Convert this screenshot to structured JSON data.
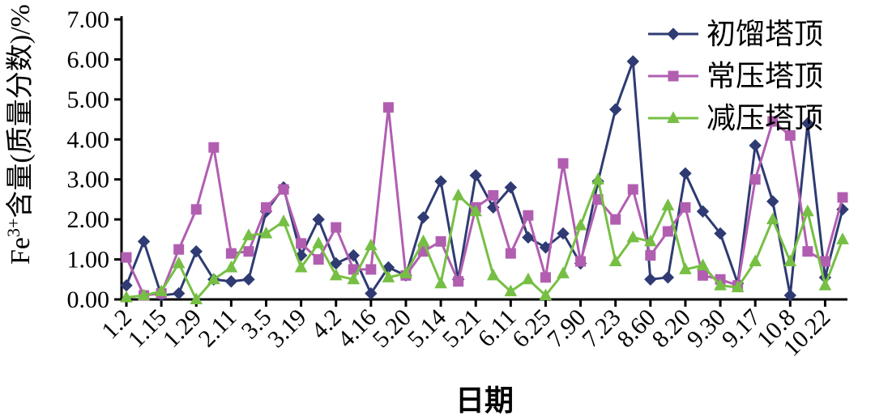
{
  "page": {
    "background": "#ffffff"
  },
  "chart_data": {
    "type": "line",
    "title": "",
    "xlabel": "日期",
    "ylabel": {
      "prefix": "Fe",
      "superscript": "3+",
      "suffix": "含量(质量分数)/%"
    },
    "ylim": [
      0,
      7
    ],
    "ytick_labels": [
      "0.00",
      "1.00",
      "2.00",
      "3.00",
      "4.00",
      "5.00",
      "6.00",
      "7.00"
    ],
    "x_tick_labels": [
      "1.2",
      "1.15",
      "1.29",
      "2.11",
      "3.5",
      "3.19",
      "4.2",
      "4.16",
      "5.20",
      "5.14",
      "5.21",
      "6.11",
      "6.25",
      "7.90",
      "7.23",
      "8.60",
      "8.20",
      "9.30",
      "9.17",
      "10.8",
      "10.22"
    ],
    "x_points_per_label": 2,
    "grid": false,
    "legend_position": "top-right",
    "axis_color": "#000000",
    "series": [
      {
        "name": "初馏塔顶",
        "marker": "diamond",
        "color": "#2F3B72",
        "values": [
          0.35,
          1.45,
          0.1,
          0.15,
          1.2,
          0.5,
          0.45,
          0.5,
          2.2,
          2.8,
          1.1,
          2.0,
          0.9,
          1.1,
          0.15,
          0.8,
          0.6,
          2.05,
          2.95,
          0.5,
          3.1,
          2.3,
          2.8,
          1.55,
          1.3,
          1.65,
          0.9,
          2.95,
          4.75,
          5.95,
          0.5,
          0.55,
          3.15,
          2.2,
          1.65,
          0.4,
          3.85,
          2.45,
          0.1,
          4.4,
          0.55,
          2.25
        ]
      },
      {
        "name": "常压塔顶",
        "marker": "square",
        "color": "#B15EB1",
        "values": [
          1.05,
          0.1,
          0.15,
          1.25,
          2.25,
          3.8,
          1.15,
          1.2,
          2.3,
          2.75,
          1.4,
          1.0,
          1.8,
          0.75,
          0.75,
          4.8,
          0.6,
          1.2,
          1.45,
          0.45,
          2.3,
          2.6,
          1.15,
          2.1,
          0.55,
          3.4,
          0.95,
          2.5,
          2.0,
          2.75,
          1.1,
          1.7,
          2.3,
          0.6,
          0.5,
          0.35,
          3.0,
          4.45,
          4.1,
          1.2,
          0.95,
          2.55
        ]
      },
      {
        "name": "减压塔顶",
        "marker": "triangle",
        "color": "#76BF44",
        "values": [
          0.05,
          0.1,
          0.2,
          0.9,
          0.0,
          0.5,
          0.8,
          1.6,
          1.65,
          1.95,
          0.8,
          1.4,
          0.6,
          0.5,
          1.35,
          0.55,
          0.65,
          1.45,
          0.4,
          2.6,
          2.2,
          0.6,
          0.2,
          0.5,
          0.1,
          0.65,
          1.85,
          3.0,
          0.95,
          1.55,
          1.45,
          2.35,
          0.75,
          0.85,
          0.35,
          0.3,
          0.95,
          2.0,
          0.95,
          2.2,
          0.35,
          1.5
        ]
      }
    ]
  }
}
